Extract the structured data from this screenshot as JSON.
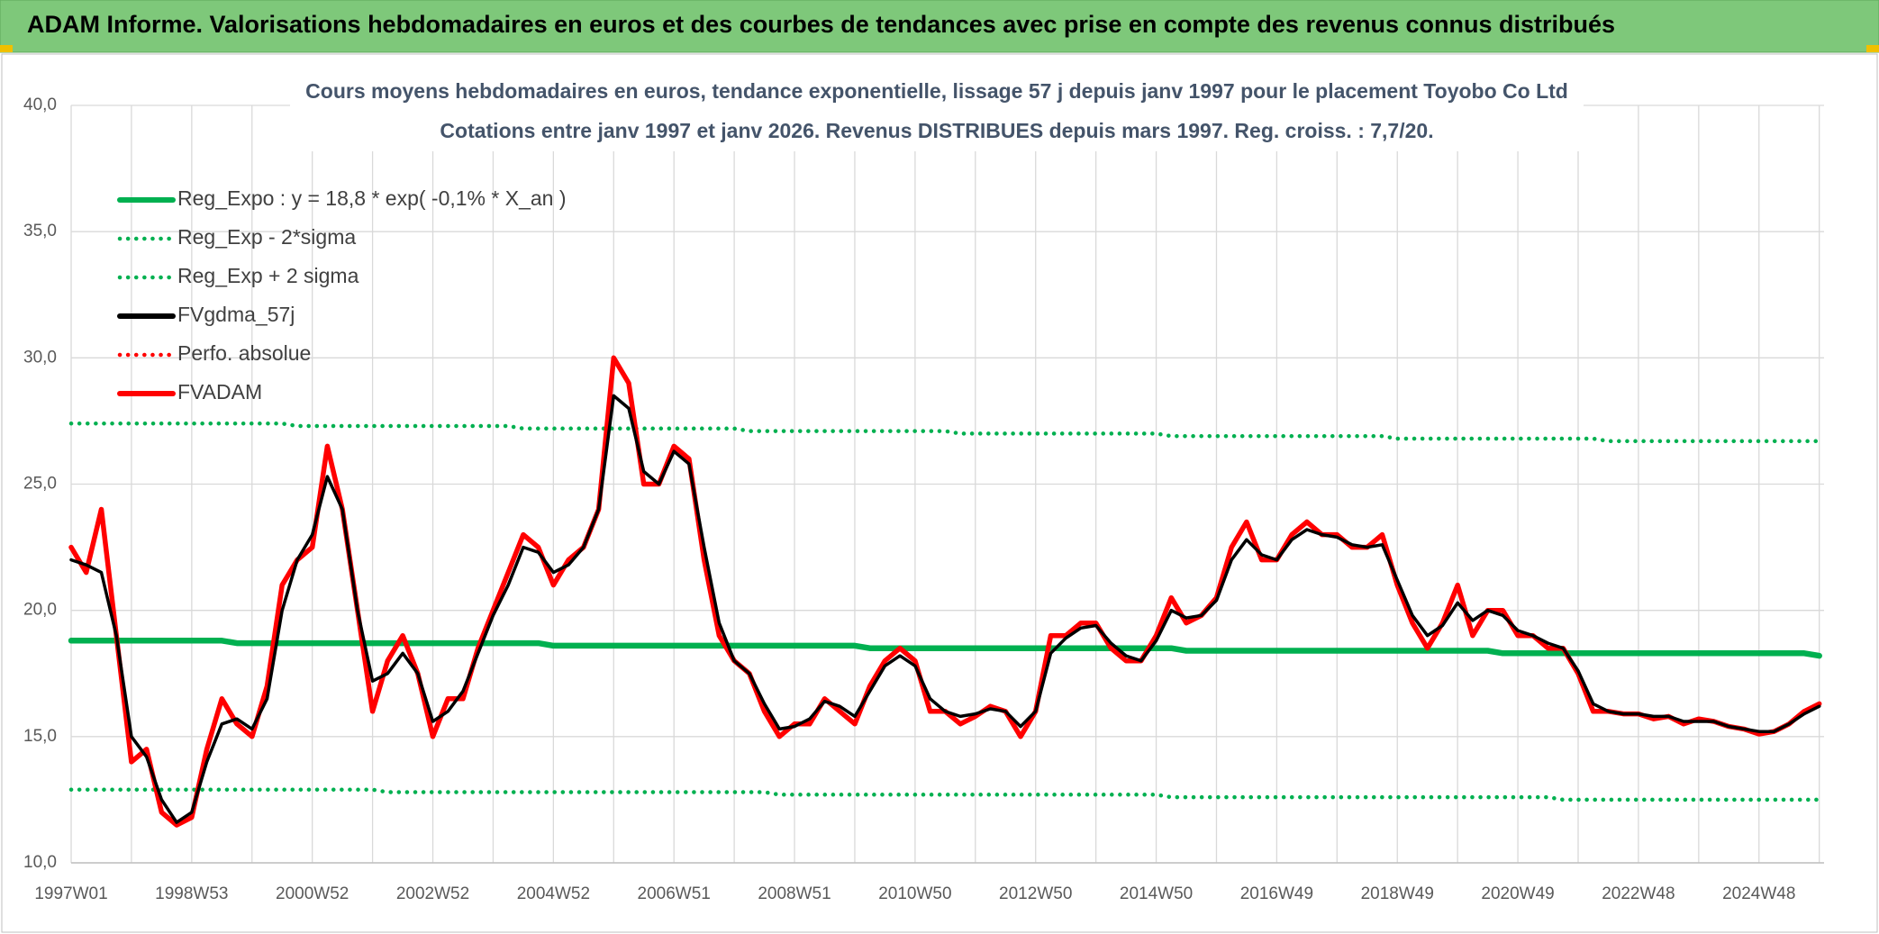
{
  "header": {
    "title": "ADAM Informe. Valorisations hebdomadaires en euros et des courbes de tendances avec prise en compte des revenus connus distribués"
  },
  "chart_data": {
    "type": "line",
    "title": "Cours moyens hebdomadaires en euros, tendance exponentielle, lissage 57 j depuis janv 1997 pour le placement Toyobo Co Ltd",
    "subtitle": "Cotations entre janv 1997 et janv 2026. Revenus DISTRIBUES depuis mars 1997. Reg. croiss. : 7,7/20.",
    "categories": [
      "1997W01",
      null,
      null,
      null,
      null,
      null,
      null,
      null,
      "1998W53",
      null,
      null,
      null,
      null,
      null,
      null,
      null,
      "2000W52",
      null,
      null,
      null,
      null,
      null,
      null,
      null,
      "2002W52",
      null,
      null,
      null,
      null,
      null,
      null,
      null,
      "2004W52",
      null,
      null,
      null,
      null,
      null,
      null,
      null,
      "2006W51",
      null,
      null,
      null,
      null,
      null,
      null,
      null,
      "2008W51",
      null,
      null,
      null,
      null,
      null,
      null,
      null,
      "2010W50",
      null,
      null,
      null,
      null,
      null,
      null,
      null,
      "2012W50",
      null,
      null,
      null,
      null,
      null,
      null,
      null,
      "2014W50",
      null,
      null,
      null,
      null,
      null,
      null,
      null,
      "2016W49",
      null,
      null,
      null,
      null,
      null,
      null,
      null,
      "2018W49",
      null,
      null,
      null,
      null,
      null,
      null,
      null,
      "2020W49",
      null,
      null,
      null,
      null,
      null,
      null,
      null,
      "2022W48",
      null,
      null,
      null,
      null,
      null,
      null,
      null,
      "2024W48",
      null,
      null,
      null,
      null
    ],
    "ylim": [
      10,
      40
    ],
    "yticks": [
      {
        "value": 10,
        "label": "10,0"
      },
      {
        "value": 15,
        "label": "15,0"
      },
      {
        "value": 20,
        "label": "20,0"
      },
      {
        "value": 25,
        "label": "25,0"
      },
      {
        "value": 30,
        "label": "30,0"
      },
      {
        "value": 35,
        "label": "35,0"
      },
      {
        "value": 40,
        "label": "40,0"
      }
    ],
    "grid": true,
    "legend": "top-left",
    "series": [
      {
        "name": "Reg_Expo : y = 18,8 * exp( -0,1% *  X_an )",
        "color": "#00b050",
        "style": "solid",
        "values": [
          18.8,
          18.8,
          18.8,
          18.8,
          18.8,
          18.8,
          18.8,
          18.8,
          18.8,
          18.8,
          18.8,
          18.7,
          18.7,
          18.7,
          18.7,
          18.7,
          18.7,
          18.7,
          18.7,
          18.7,
          18.7,
          18.7,
          18.7,
          18.7,
          18.7,
          18.7,
          18.7,
          18.7,
          18.7,
          18.7,
          18.7,
          18.7,
          18.6,
          18.6,
          18.6,
          18.6,
          18.6,
          18.6,
          18.6,
          18.6,
          18.6,
          18.6,
          18.6,
          18.6,
          18.6,
          18.6,
          18.6,
          18.6,
          18.6,
          18.6,
          18.6,
          18.6,
          18.6,
          18.5,
          18.5,
          18.5,
          18.5,
          18.5,
          18.5,
          18.5,
          18.5,
          18.5,
          18.5,
          18.5,
          18.5,
          18.5,
          18.5,
          18.5,
          18.5,
          18.5,
          18.5,
          18.5,
          18.5,
          18.5,
          18.4,
          18.4,
          18.4,
          18.4,
          18.4,
          18.4,
          18.4,
          18.4,
          18.4,
          18.4,
          18.4,
          18.4,
          18.4,
          18.4,
          18.4,
          18.4,
          18.4,
          18.4,
          18.4,
          18.4,
          18.4,
          18.3,
          18.3,
          18.3,
          18.3,
          18.3,
          18.3,
          18.3,
          18.3,
          18.3,
          18.3,
          18.3,
          18.3,
          18.3,
          18.3,
          18.3,
          18.3,
          18.3,
          18.3,
          18.3,
          18.3,
          18.3,
          18.2
        ]
      },
      {
        "name": "Reg_Exp - 2*sigma",
        "color": "#00b050",
        "style": "dotted",
        "values": [
          12.9,
          12.9,
          12.9,
          12.9,
          12.9,
          12.9,
          12.9,
          12.9,
          12.9,
          12.9,
          12.9,
          12.9,
          12.9,
          12.9,
          12.9,
          12.9,
          12.9,
          12.9,
          12.9,
          12.9,
          12.9,
          12.8,
          12.8,
          12.8,
          12.8,
          12.8,
          12.8,
          12.8,
          12.8,
          12.8,
          12.8,
          12.8,
          12.8,
          12.8,
          12.8,
          12.8,
          12.8,
          12.8,
          12.8,
          12.8,
          12.8,
          12.8,
          12.8,
          12.8,
          12.8,
          12.8,
          12.8,
          12.7,
          12.7,
          12.7,
          12.7,
          12.7,
          12.7,
          12.7,
          12.7,
          12.7,
          12.7,
          12.7,
          12.7,
          12.7,
          12.7,
          12.7,
          12.7,
          12.7,
          12.7,
          12.7,
          12.7,
          12.7,
          12.7,
          12.7,
          12.7,
          12.7,
          12.7,
          12.6,
          12.6,
          12.6,
          12.6,
          12.6,
          12.6,
          12.6,
          12.6,
          12.6,
          12.6,
          12.6,
          12.6,
          12.6,
          12.6,
          12.6,
          12.6,
          12.6,
          12.6,
          12.6,
          12.6,
          12.6,
          12.6,
          12.6,
          12.6,
          12.6,
          12.6,
          12.5,
          12.5,
          12.5,
          12.5,
          12.5,
          12.5,
          12.5,
          12.5,
          12.5,
          12.5,
          12.5,
          12.5,
          12.5,
          12.5,
          12.5,
          12.5,
          12.5,
          12.5
        ]
      },
      {
        "name": "Reg_Exp + 2 sigma",
        "color": "#00b050",
        "style": "dotted",
        "values": [
          27.4,
          27.4,
          27.4,
          27.4,
          27.4,
          27.4,
          27.4,
          27.4,
          27.4,
          27.4,
          27.4,
          27.4,
          27.4,
          27.4,
          27.4,
          27.3,
          27.3,
          27.3,
          27.3,
          27.3,
          27.3,
          27.3,
          27.3,
          27.3,
          27.3,
          27.3,
          27.3,
          27.3,
          27.3,
          27.3,
          27.2,
          27.2,
          27.2,
          27.2,
          27.2,
          27.2,
          27.2,
          27.2,
          27.2,
          27.2,
          27.2,
          27.2,
          27.2,
          27.2,
          27.2,
          27.1,
          27.1,
          27.1,
          27.1,
          27.1,
          27.1,
          27.1,
          27.1,
          27.1,
          27.1,
          27.1,
          27.1,
          27.1,
          27.1,
          27.0,
          27.0,
          27.0,
          27.0,
          27.0,
          27.0,
          27.0,
          27.0,
          27.0,
          27.0,
          27.0,
          27.0,
          27.0,
          27.0,
          26.9,
          26.9,
          26.9,
          26.9,
          26.9,
          26.9,
          26.9,
          26.9,
          26.9,
          26.9,
          26.9,
          26.9,
          26.9,
          26.9,
          26.9,
          26.8,
          26.8,
          26.8,
          26.8,
          26.8,
          26.8,
          26.8,
          26.8,
          26.8,
          26.8,
          26.8,
          26.8,
          26.8,
          26.8,
          26.7,
          26.7,
          26.7,
          26.7,
          26.7,
          26.7,
          26.7,
          26.7,
          26.7,
          26.7,
          26.7,
          26.7,
          26.7,
          26.7,
          26.7
        ]
      },
      {
        "name": "FVgdma_57j",
        "color": "#000000",
        "style": "solid",
        "values": [
          22.0,
          21.8,
          21.5,
          19.0,
          15.0,
          14.2,
          12.5,
          11.6,
          12.0,
          14.0,
          15.5,
          15.7,
          15.3,
          16.5,
          20.0,
          22.0,
          23.0,
          25.3,
          24.0,
          20.0,
          17.2,
          17.5,
          18.3,
          17.5,
          15.6,
          16.0,
          16.8,
          18.3,
          19.8,
          21.0,
          22.5,
          22.3,
          21.5,
          21.8,
          22.5,
          24.0,
          28.5,
          28.0,
          25.5,
          25.0,
          26.3,
          25.8,
          22.5,
          19.5,
          18.0,
          17.5,
          16.3,
          15.3,
          15.4,
          15.7,
          16.4,
          16.2,
          15.8,
          16.8,
          17.8,
          18.2,
          17.8,
          16.5,
          16.0,
          15.8,
          15.9,
          16.1,
          16.0,
          15.4,
          16.0,
          18.3,
          18.9,
          19.3,
          19.4,
          18.7,
          18.2,
          18.0,
          18.8,
          20.0,
          19.7,
          19.8,
          20.4,
          22.0,
          22.8,
          22.2,
          22.0,
          22.8,
          23.2,
          23.0,
          22.9,
          22.6,
          22.5,
          22.6,
          21.2,
          19.8,
          19.0,
          19.4,
          20.3,
          19.6,
          20.0,
          19.8,
          19.2,
          19.0,
          18.7,
          18.5,
          17.6,
          16.3,
          16.0,
          15.9,
          15.9,
          15.8,
          15.8,
          15.6,
          15.6,
          15.6,
          15.4,
          15.3,
          15.2,
          15.2,
          15.5,
          15.9,
          16.2
        ]
      },
      {
        "name": "Perfo. absolue",
        "color": "#ff0000",
        "style": "dotted",
        "values": [
          22.5,
          21.5,
          24.0,
          19.0,
          14.0,
          14.5,
          12.0,
          11.5,
          11.8,
          14.5,
          16.5,
          15.5,
          15.0,
          17.0,
          21.0,
          22.0,
          22.5,
          26.5,
          24.0,
          20.0,
          16.0,
          18.0,
          19.0,
          17.5,
          15.0,
          16.5,
          16.5,
          18.5,
          20.0,
          21.5,
          23.0,
          22.5,
          21.0,
          22.0,
          22.5,
          24.0,
          30.0,
          29.0,
          25.0,
          25.0,
          26.5,
          26.0,
          22.0,
          19.0,
          18.0,
          17.5,
          16.0,
          15.0,
          15.5,
          15.5,
          16.5,
          16.0,
          15.5,
          17.0,
          18.0,
          18.5,
          18.0,
          16.0,
          16.0,
          15.5,
          15.8,
          16.2,
          16.0,
          15.0,
          16.0,
          19.0,
          19.0,
          19.5,
          19.5,
          18.5,
          18.0,
          18.0,
          19.0,
          20.5,
          19.5,
          19.8,
          20.5,
          22.5,
          23.5,
          22.0,
          22.0,
          23.0,
          23.5,
          23.0,
          23.0,
          22.5,
          22.5,
          23.0,
          21.0,
          19.5,
          18.5,
          19.5,
          21.0,
          19.0,
          20.0,
          20.0,
          19.0,
          19.0,
          18.5,
          18.5,
          17.5,
          16.0,
          16.0,
          15.9,
          15.9,
          15.7,
          15.8,
          15.5,
          15.7,
          15.6,
          15.4,
          15.3,
          15.1,
          15.2,
          15.5,
          16.0,
          16.3
        ]
      },
      {
        "name": "FVADAM",
        "color": "#ff0000",
        "style": "solid",
        "values": [
          22.5,
          21.5,
          24.0,
          19.0,
          14.0,
          14.5,
          12.0,
          11.5,
          11.8,
          14.5,
          16.5,
          15.5,
          15.0,
          17.0,
          21.0,
          22.0,
          22.5,
          26.5,
          24.0,
          20.0,
          16.0,
          18.0,
          19.0,
          17.5,
          15.0,
          16.5,
          16.5,
          18.5,
          20.0,
          21.5,
          23.0,
          22.5,
          21.0,
          22.0,
          22.5,
          24.0,
          30.0,
          29.0,
          25.0,
          25.0,
          26.5,
          26.0,
          22.0,
          19.0,
          18.0,
          17.5,
          16.0,
          15.0,
          15.5,
          15.5,
          16.5,
          16.0,
          15.5,
          17.0,
          18.0,
          18.5,
          18.0,
          16.0,
          16.0,
          15.5,
          15.8,
          16.2,
          16.0,
          15.0,
          16.0,
          19.0,
          19.0,
          19.5,
          19.5,
          18.5,
          18.0,
          18.0,
          19.0,
          20.5,
          19.5,
          19.8,
          20.5,
          22.5,
          23.5,
          22.0,
          22.0,
          23.0,
          23.5,
          23.0,
          23.0,
          22.5,
          22.5,
          23.0,
          21.0,
          19.5,
          18.5,
          19.5,
          21.0,
          19.0,
          20.0,
          20.0,
          19.0,
          19.0,
          18.5,
          18.5,
          17.5,
          16.0,
          16.0,
          15.9,
          15.9,
          15.7,
          15.8,
          15.5,
          15.7,
          15.6,
          15.4,
          15.3,
          15.1,
          15.2,
          15.5,
          16.0,
          16.3
        ]
      }
    ]
  }
}
